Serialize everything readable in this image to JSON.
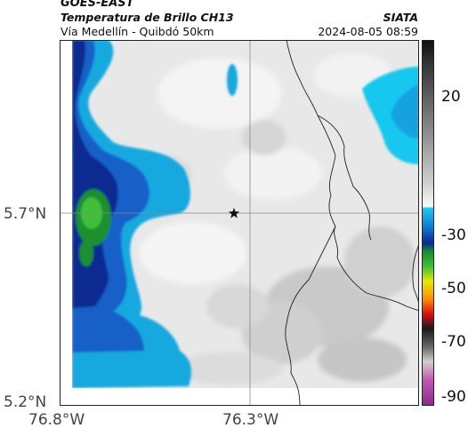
{
  "header": {
    "satellite": "GOES-EAST",
    "product": "Temperatura de Brillo CH13",
    "route": "Vía Medellín - Quibdó 50km",
    "org": "SIATA",
    "datetime": "2024-08-05 08:59"
  },
  "map": {
    "lat_ticks": [
      "5.7°N",
      "5.2°N"
    ],
    "lon_ticks": [
      "76.8°W",
      "76.3°W"
    ],
    "marker_icon": "star-icon"
  },
  "colorbar": {
    "ticks": [
      "20",
      "-30",
      "-50",
      "-70",
      "-90"
    ]
  }
}
